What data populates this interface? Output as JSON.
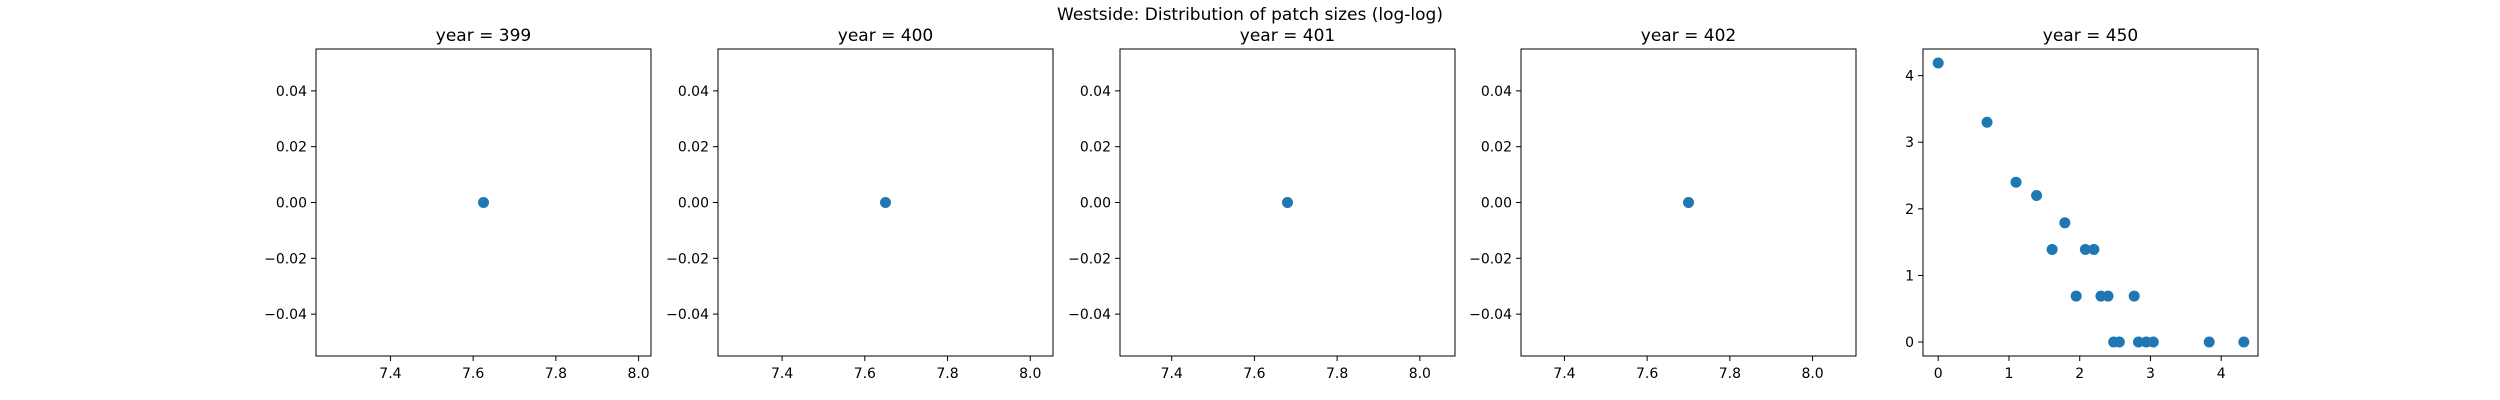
{
  "figure": {
    "suptitle": "Westside: Distribution of patch sizes (log-log)"
  },
  "chart_data": [
    {
      "type": "scatter",
      "title": "year = 399",
      "xlabel": "",
      "ylabel": "",
      "xlim": [
        7.22,
        8.03
      ],
      "ylim": [
        -0.055,
        0.055
      ],
      "xticks": [
        7.4,
        7.6,
        7.8,
        8.0
      ],
      "xtick_labels": [
        "7.4",
        "7.6",
        "7.8",
        "8.0"
      ],
      "yticks": [
        -0.04,
        -0.02,
        0.0,
        0.02,
        0.04
      ],
      "ytick_labels": [
        "−0.04",
        "−0.02",
        "0.00",
        "0.02",
        "0.04"
      ],
      "color": "#1f77b4",
      "points": [
        {
          "x": 7.625,
          "y": 0.0
        }
      ]
    },
    {
      "type": "scatter",
      "title": "year = 400",
      "xlabel": "",
      "ylabel": "",
      "xlim": [
        7.245,
        8.055
      ],
      "ylim": [
        -0.055,
        0.055
      ],
      "xticks": [
        7.4,
        7.6,
        7.8,
        8.0
      ],
      "xtick_labels": [
        "7.4",
        "7.6",
        "7.8",
        "8.0"
      ],
      "yticks": [
        -0.04,
        -0.02,
        0.0,
        0.02,
        0.04
      ],
      "ytick_labels": [
        "−0.04",
        "−0.02",
        "0.00",
        "0.02",
        "0.04"
      ],
      "color": "#1f77b4",
      "points": [
        {
          "x": 7.65,
          "y": 0.0
        }
      ]
    },
    {
      "type": "scatter",
      "title": "year = 401",
      "xlabel": "",
      "ylabel": "",
      "xlim": [
        7.275,
        8.085
      ],
      "ylim": [
        -0.055,
        0.055
      ],
      "xticks": [
        7.4,
        7.6,
        7.8,
        8.0
      ],
      "xtick_labels": [
        "7.4",
        "7.6",
        "7.8",
        "8.0"
      ],
      "yticks": [
        -0.04,
        -0.02,
        0.0,
        0.02,
        0.04
      ],
      "ytick_labels": [
        "−0.04",
        "−0.02",
        "0.00",
        "0.02",
        "0.04"
      ],
      "color": "#1f77b4",
      "points": [
        {
          "x": 7.68,
          "y": 0.0
        }
      ]
    },
    {
      "type": "scatter",
      "title": "year = 402",
      "xlabel": "",
      "ylabel": "",
      "xlim": [
        7.295,
        8.105
      ],
      "ylim": [
        -0.055,
        0.055
      ],
      "xticks": [
        7.4,
        7.6,
        7.8,
        8.0
      ],
      "xtick_labels": [
        "7.4",
        "7.6",
        "7.8",
        "8.0"
      ],
      "yticks": [
        -0.04,
        -0.02,
        0.0,
        0.02,
        0.04
      ],
      "ytick_labels": [
        "−0.04",
        "−0.02",
        "0.00",
        "0.02",
        "0.04"
      ],
      "color": "#1f77b4",
      "points": [
        {
          "x": 7.7,
          "y": 0.0
        }
      ]
    },
    {
      "type": "scatter",
      "title": "year = 450",
      "xlabel": "",
      "ylabel": "",
      "xlim": [
        -0.215,
        4.52
      ],
      "ylim": [
        -0.21,
        4.4
      ],
      "xticks": [
        0,
        1,
        2,
        3,
        4
      ],
      "xtick_labels": [
        "0",
        "1",
        "2",
        "3",
        "4"
      ],
      "yticks": [
        0,
        1,
        2,
        3,
        4
      ],
      "ytick_labels": [
        "0",
        "1",
        "2",
        "3",
        "4"
      ],
      "color": "#1f77b4",
      "points": [
        {
          "x": 0.0,
          "y": 4.19
        },
        {
          "x": 0.69,
          "y": 3.3
        },
        {
          "x": 1.1,
          "y": 2.4
        },
        {
          "x": 1.39,
          "y": 2.2
        },
        {
          "x": 1.61,
          "y": 1.39
        },
        {
          "x": 1.79,
          "y": 1.79
        },
        {
          "x": 1.95,
          "y": 0.69
        },
        {
          "x": 2.08,
          "y": 1.39
        },
        {
          "x": 2.2,
          "y": 1.39
        },
        {
          "x": 2.3,
          "y": 0.69
        },
        {
          "x": 2.4,
          "y": 0.69
        },
        {
          "x": 2.48,
          "y": 0.0
        },
        {
          "x": 2.56,
          "y": 0.0
        },
        {
          "x": 2.77,
          "y": 0.69
        },
        {
          "x": 2.83,
          "y": 0.0
        },
        {
          "x": 2.94,
          "y": 0.0
        },
        {
          "x": 3.04,
          "y": 0.0
        },
        {
          "x": 3.83,
          "y": 0.0
        },
        {
          "x": 4.32,
          "y": 0.0
        }
      ]
    }
  ]
}
